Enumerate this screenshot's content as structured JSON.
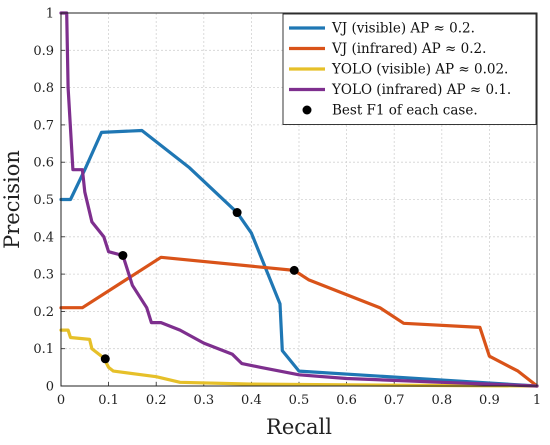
{
  "chart_data": {
    "type": "line",
    "xlabel": "Recall",
    "ylabel": "Precision",
    "xlim": [
      0,
      1
    ],
    "ylim": [
      0,
      1
    ],
    "xticks": [
      "0",
      "0.1",
      "0.2",
      "0.3",
      "0.4",
      "0.5",
      "0.6",
      "0.7",
      "0.8",
      "0.9",
      "1"
    ],
    "yticks": [
      "0",
      "0.1",
      "0.2",
      "0.3",
      "0.4",
      "0.5",
      "0.6",
      "0.7",
      "0.8",
      "0.9",
      "1"
    ],
    "grid": true,
    "legend_position": "top-right",
    "series": [
      {
        "name": "VJ (visible) AP ≈ 0.2.",
        "color": "#1f77b4",
        "points": [
          [
            0,
            0.5
          ],
          [
            0.02,
            0.5
          ],
          [
            0.05,
            0.58
          ],
          [
            0.085,
            0.68
          ],
          [
            0.17,
            0.685
          ],
          [
            0.27,
            0.585
          ],
          [
            0.37,
            0.465
          ],
          [
            0.4,
            0.41
          ],
          [
            0.46,
            0.22
          ],
          [
            0.465,
            0.095
          ],
          [
            0.5,
            0.04
          ],
          [
            1,
            0.0
          ]
        ]
      },
      {
        "name": "VJ (infrared) AP ≈ 0.2.",
        "color": "#d95319",
        "points": [
          [
            0,
            0.21
          ],
          [
            0.045,
            0.21
          ],
          [
            0.21,
            0.345
          ],
          [
            0.49,
            0.31
          ],
          [
            0.52,
            0.285
          ],
          [
            0.67,
            0.21
          ],
          [
            0.72,
            0.168
          ],
          [
            0.88,
            0.157
          ],
          [
            0.9,
            0.08
          ],
          [
            0.96,
            0.04
          ],
          [
            1,
            0.0
          ]
        ]
      },
      {
        "name": "YOLO (visible) AP ≈ 0.02.",
        "color": "#e6c029",
        "points": [
          [
            0,
            0.15
          ],
          [
            0.015,
            0.15
          ],
          [
            0.02,
            0.13
          ],
          [
            0.06,
            0.125
          ],
          [
            0.065,
            0.1
          ],
          [
            0.09,
            0.075
          ],
          [
            0.1,
            0.05
          ],
          [
            0.11,
            0.04
          ],
          [
            0.2,
            0.025
          ],
          [
            0.25,
            0.01
          ],
          [
            0.4,
            0.005
          ],
          [
            0.6,
            0.003
          ],
          [
            1,
            0.0
          ]
        ]
      },
      {
        "name": "YOLO (infrared) AP ≈ 0.1.",
        "color": "#7e2f8e",
        "points": [
          [
            0,
            1.0
          ],
          [
            0.012,
            1.0
          ],
          [
            0.015,
            0.8
          ],
          [
            0.025,
            0.58
          ],
          [
            0.045,
            0.58
          ],
          [
            0.05,
            0.52
          ],
          [
            0.065,
            0.44
          ],
          [
            0.09,
            0.4
          ],
          [
            0.1,
            0.36
          ],
          [
            0.13,
            0.35
          ],
          [
            0.15,
            0.27
          ],
          [
            0.18,
            0.21
          ],
          [
            0.19,
            0.17
          ],
          [
            0.21,
            0.17
          ],
          [
            0.25,
            0.15
          ],
          [
            0.3,
            0.115
          ],
          [
            0.36,
            0.085
          ],
          [
            0.38,
            0.06
          ],
          [
            0.42,
            0.05
          ],
          [
            0.5,
            0.03
          ],
          [
            0.6,
            0.02
          ],
          [
            0.8,
            0.01
          ],
          [
            1,
            0.0
          ]
        ]
      }
    ],
    "best_f1": {
      "name": "Best F1 of each case.",
      "color": "#000000",
      "points": [
        [
          0.37,
          0.465
        ],
        [
          0.49,
          0.31
        ],
        [
          0.093,
          0.073
        ],
        [
          0.13,
          0.35
        ]
      ]
    }
  }
}
